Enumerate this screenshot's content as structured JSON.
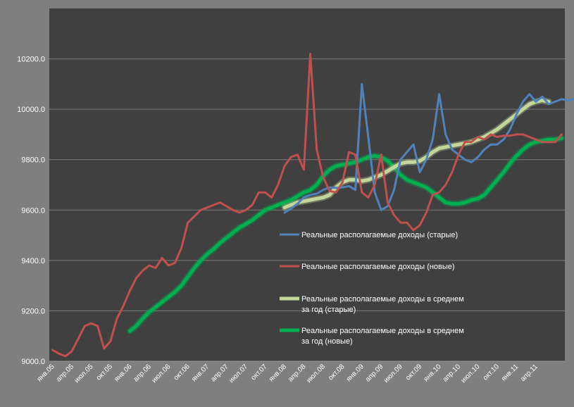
{
  "chart_data": {
    "type": "line",
    "title": "",
    "xlabel": "",
    "ylabel": "",
    "ylim": [
      9000,
      10400
    ],
    "y_ticks": [
      9000,
      9200,
      9400,
      9600,
      9800,
      10000,
      10200
    ],
    "y_tick_format_decimals": 1,
    "x_tick_labels": [
      "янв.05",
      "апр.05",
      "июл.05",
      "окт.05",
      "янв.06",
      "апр.06",
      "июл.06",
      "окт.06",
      "янв.07",
      "апр.07",
      "июл.07",
      "окт.07",
      "янв.08",
      "апр.08",
      "июл.08",
      "окт.08",
      "янв.09",
      "апр.09",
      "июл.09",
      "окт.09",
      "янв.10",
      "апр.10",
      "июл.10",
      "окт.10",
      "янв.11",
      "апр.11"
    ],
    "x_tick_step_months": 3,
    "grid": "horizontal",
    "background": "#404040",
    "legend_placement": "inside-center-right",
    "series": [
      {
        "name": "Реальные располагаемые доходы (старые)",
        "color": "#4f81bd",
        "style": "thin",
        "start_month": 36,
        "values": [
          9590,
          9605,
          9625,
          9650,
          9660,
          9665,
          9680,
          9690,
          9688,
          9690,
          9695,
          9680,
          10100,
          9890,
          9670,
          9600,
          9615,
          9680,
          9800,
          9830,
          9860,
          9750,
          9800,
          9880,
          10060,
          9900,
          9840,
          9820,
          9800,
          9790,
          9810,
          9840,
          9860,
          9860,
          9880,
          9920,
          9980,
          10030,
          10060,
          10030,
          10050,
          10020,
          10030,
          10040,
          10035,
          10040,
          10020,
          10000,
          9990,
          10000
        ]
      },
      {
        "name": "Реальные располагаемые доходы  (новые)",
        "color": "#c0504d",
        "style": "thin",
        "values": [
          9045,
          9030,
          9020,
          9040,
          9090,
          9140,
          9150,
          9140,
          9050,
          9080,
          9170,
          9220,
          9280,
          9330,
          9360,
          9380,
          9370,
          9410,
          9380,
          9390,
          9450,
          9550,
          9575,
          9600,
          9610,
          9620,
          9630,
          9615,
          9600,
          9590,
          9600,
          9620,
          9670,
          9670,
          9650,
          9700,
          9775,
          9810,
          9820,
          9760,
          10220,
          9840,
          9730,
          9675,
          9670,
          9710,
          9830,
          9820,
          9670,
          9650,
          9700,
          9820,
          9630,
          9580,
          9550,
          9550,
          9520,
          9540,
          9590,
          9660,
          9670,
          9700,
          9750,
          9820,
          9870,
          9870,
          9890,
          9880,
          9900,
          9890,
          9895,
          9895,
          9900,
          9900,
          9890,
          9880,
          9870,
          9870,
          9870,
          9900
        ]
      },
      {
        "name": "Реальные располагаемые доходы в среднем за год (старые)",
        "color": "#c4d79b",
        "style": "thick",
        "start_month": 36,
        "values": [
          9610,
          9620,
          9630,
          9635,
          9640,
          9645,
          9650,
          9660,
          9690,
          9710,
          9720,
          9720,
          9715,
          9720,
          9730,
          9740,
          9755,
          9770,
          9785,
          9790,
          9790,
          9795,
          9810,
          9830,
          9845,
          9850,
          9855,
          9860,
          9865,
          9870,
          9880,
          9890,
          9905,
          9920,
          9940,
          9960,
          9980,
          10000,
          10020,
          10030,
          10035,
          10030
        ]
      },
      {
        "name": "Реальные располагаемые доходы в среднем за год (новые)",
        "color": "#00b050",
        "style": "thick",
        "start_month": 12,
        "values": [
          9120,
          9140,
          9170,
          9195,
          9215,
          9235,
          9255,
          9275,
          9300,
          9335,
          9370,
          9400,
          9425,
          9445,
          9470,
          9490,
          9510,
          9530,
          9545,
          9560,
          9580,
          9600,
          9610,
          9620,
          9630,
          9640,
          9655,
          9670,
          9680,
          9700,
          9735,
          9760,
          9775,
          9780,
          9785,
          9790,
          9800,
          9810,
          9815,
          9810,
          9795,
          9770,
          9740,
          9720,
          9710,
          9700,
          9690,
          9670,
          9650,
          9630,
          9625,
          9625,
          9630,
          9640,
          9645,
          9660,
          9690,
          9720,
          9750,
          9785,
          9815,
          9840,
          9860,
          9870,
          9875,
          9880,
          9880,
          9885
        ]
      }
    ]
  },
  "legend": {
    "item1": "Реальные располагаемые доходы (старые)",
    "item2": "Реальные располагаемые доходы  (новые)",
    "item3_line1": "Реальные располагаемые доходы в среднем",
    "item3_line2": "за год (старые)",
    "item4_line1": "Реальные располагаемые доходы в среднем",
    "item4_line2": "за год (новые)"
  }
}
